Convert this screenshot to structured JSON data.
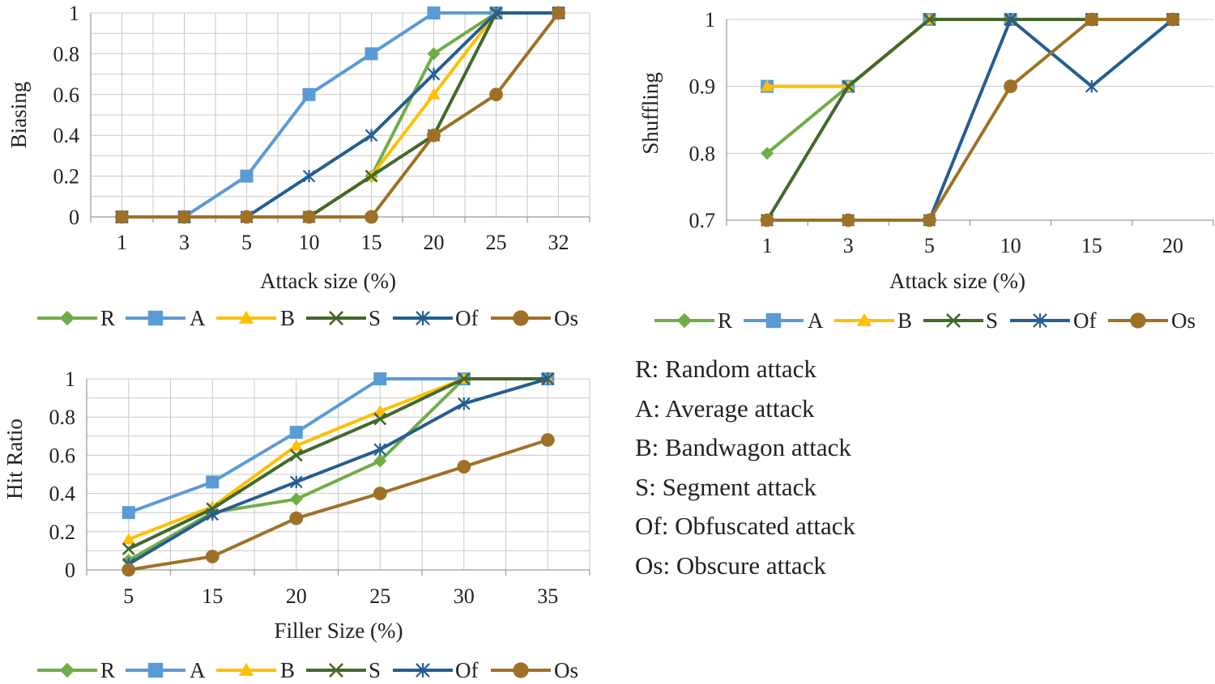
{
  "colors": {
    "R": "#70ad47",
    "A": "#5b9bd5",
    "B": "#ffc000",
    "S": "#43682b",
    "Of": "#255e91",
    "Os": "#9e7127"
  },
  "chart_data": [
    {
      "type": "line",
      "xlabel": "Attack size (%)",
      "ylabel": "Biasing",
      "categories": [
        "1",
        "3",
        "5",
        "10",
        "15",
        "20",
        "25",
        "32"
      ],
      "ylim": [
        0,
        1
      ],
      "yticks": [
        "0",
        "0.2",
        "0.4",
        "0.6",
        "0.8",
        "1"
      ],
      "grid": true,
      "legend": "bottom",
      "series": [
        {
          "name": "R",
          "marker": "diamond",
          "values": [
            0,
            0,
            0,
            0,
            0.2,
            0.8,
            1,
            1
          ]
        },
        {
          "name": "A",
          "marker": "square",
          "values": [
            0,
            0,
            0.2,
            0.6,
            0.8,
            1,
            1,
            1
          ]
        },
        {
          "name": "B",
          "marker": "triangle",
          "values": [
            0,
            0,
            0,
            0,
            0.2,
            0.6,
            1,
            1
          ]
        },
        {
          "name": "S",
          "marker": "x",
          "values": [
            0,
            0,
            0,
            0,
            0.2,
            0.4,
            1,
            1
          ]
        },
        {
          "name": "Of",
          "marker": "star",
          "values": [
            0,
            0,
            0,
            0.2,
            0.4,
            0.7,
            1,
            1
          ]
        },
        {
          "name": "Os",
          "marker": "circle",
          "values": [
            0,
            0,
            0,
            0,
            0,
            0.4,
            0.6,
            1
          ]
        }
      ]
    },
    {
      "type": "line",
      "xlabel": "Attack size (%)",
      "ylabel": "Shuffling",
      "categories": [
        "1",
        "3",
        "5",
        "10",
        "15",
        "20"
      ],
      "ylim": [
        0.7,
        1
      ],
      "yticks": [
        "0.7",
        "0.8",
        "0.9",
        "1"
      ],
      "grid": false,
      "legend": "bottom",
      "series": [
        {
          "name": "R",
          "marker": "diamond",
          "values": [
            0.8,
            0.9,
            1,
            1,
            1,
            1
          ]
        },
        {
          "name": "A",
          "marker": "square",
          "values": [
            0.9,
            0.9,
            1,
            1,
            1,
            1
          ]
        },
        {
          "name": "B",
          "marker": "triangle",
          "values": [
            0.9,
            0.9,
            1,
            1,
            1,
            1
          ]
        },
        {
          "name": "S",
          "marker": "x",
          "values": [
            0.7,
            0.9,
            1,
            1,
            1,
            1
          ]
        },
        {
          "name": "Of",
          "marker": "star",
          "values": [
            0.7,
            0.7,
            0.7,
            1,
            0.9,
            1
          ]
        },
        {
          "name": "Os",
          "marker": "circle",
          "values": [
            0.7,
            0.7,
            0.7,
            0.9,
            1,
            1
          ]
        }
      ]
    },
    {
      "type": "line",
      "xlabel": "Filler Size (%)",
      "ylabel": "Hit Ratio",
      "categories": [
        "5",
        "15",
        "20",
        "25",
        "30",
        "35"
      ],
      "ylim": [
        0,
        1
      ],
      "yticks": [
        "0",
        "0.2",
        "0.4",
        "0.6",
        "0.8",
        "1"
      ],
      "grid": true,
      "legend": "bottom",
      "series": [
        {
          "name": "R",
          "marker": "diamond",
          "values": [
            0.05,
            0.3,
            0.37,
            0.57,
            1,
            1
          ]
        },
        {
          "name": "A",
          "marker": "square",
          "values": [
            0.3,
            0.46,
            0.72,
            1,
            1,
            1
          ]
        },
        {
          "name": "B",
          "marker": "triangle",
          "values": [
            0.16,
            0.33,
            0.65,
            0.83,
            1,
            1
          ]
        },
        {
          "name": "S",
          "marker": "x",
          "values": [
            0.11,
            0.32,
            0.6,
            0.79,
            1,
            1
          ]
        },
        {
          "name": "Of",
          "marker": "star",
          "values": [
            0.03,
            0.29,
            0.46,
            0.63,
            0.87,
            1
          ]
        },
        {
          "name": "Os",
          "marker": "circle",
          "values": [
            0,
            0.07,
            0.27,
            0.4,
            0.54,
            0.68
          ]
        }
      ]
    }
  ],
  "notes": [
    "R: Random attack",
    "A: Average attack",
    "B: Bandwagon attack",
    "S: Segment attack",
    "Of: Obfuscated attack",
    "Os: Obscure attack"
  ]
}
